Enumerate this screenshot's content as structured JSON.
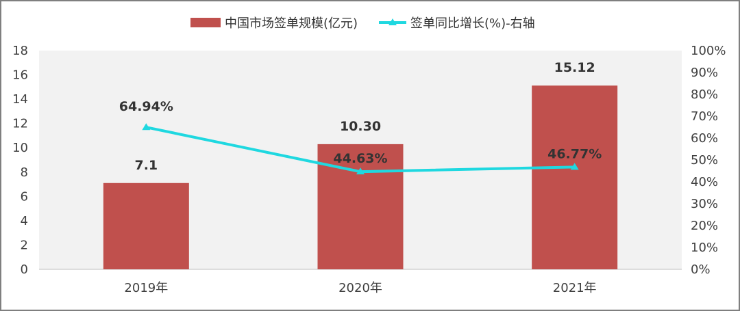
{
  "chart_data": {
    "type": "bar",
    "categories": [
      "2019年",
      "2020年",
      "2021年"
    ],
    "series": [
      {
        "name": "中国市场签单规模(亿元)",
        "kind": "bar",
        "axis": "left",
        "color": "#c0504d",
        "values": [
          7.1,
          10.3,
          15.12
        ],
        "labels": [
          "7.1",
          "10.30",
          "15.12"
        ]
      },
      {
        "name": "签单同比增长(%)-右轴",
        "kind": "line",
        "axis": "right",
        "color": "#1fd8e0",
        "values": [
          64.94,
          44.63,
          46.77
        ],
        "labels": [
          "64.94%",
          "44.63%",
          "46.77%"
        ]
      }
    ],
    "left_axis": {
      "min": 0,
      "max": 18,
      "ticks": [
        "0",
        "2",
        "4",
        "6",
        "8",
        "10",
        "12",
        "14",
        "16",
        "18"
      ]
    },
    "right_axis": {
      "min": 0,
      "max": 100,
      "ticks": [
        "0%",
        "10%",
        "20%",
        "30%",
        "40%",
        "50%",
        "60%",
        "70%",
        "80%",
        "90%",
        "100%"
      ]
    },
    "grid": false,
    "legend_position": "top"
  }
}
